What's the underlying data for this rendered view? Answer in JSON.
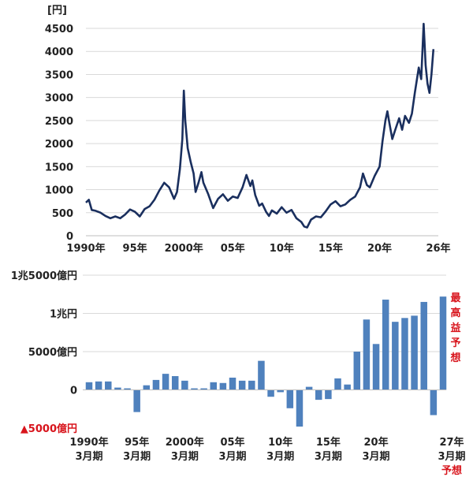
{
  "chart_data": [
    {
      "type": "line",
      "ylabel": "[円]",
      "ylim": [
        0,
        4500
      ],
      "yticks": [
        0,
        500,
        1000,
        1500,
        2000,
        2500,
        3000,
        3500,
        4000,
        4500
      ],
      "x_ticks": [
        {
          "year": 1990,
          "label": "1990年"
        },
        {
          "year": 1995,
          "label": "95年"
        },
        {
          "year": 2000,
          "label": "2000年"
        },
        {
          "year": 2005,
          "label": "05年"
        },
        {
          "year": 2010,
          "label": "10年"
        },
        {
          "year": 2015,
          "label": "15年"
        },
        {
          "year": 2020,
          "label": "20年"
        },
        {
          "year": 2026,
          "label": "26年"
        }
      ],
      "color": "#1a2f5e",
      "series": [
        {
          "values": [
            [
              1990.0,
              720
            ],
            [
              1990.3,
              780
            ],
            [
              1990.6,
              560
            ],
            [
              1991.0,
              540
            ],
            [
              1991.5,
              500
            ],
            [
              1992.0,
              430
            ],
            [
              1992.5,
              380
            ],
            [
              1993.0,
              420
            ],
            [
              1993.5,
              380
            ],
            [
              1994.0,
              460
            ],
            [
              1994.5,
              570
            ],
            [
              1995.0,
              520
            ],
            [
              1995.5,
              420
            ],
            [
              1996.0,
              580
            ],
            [
              1996.5,
              640
            ],
            [
              1997.0,
              780
            ],
            [
              1997.5,
              980
            ],
            [
              1998.0,
              1150
            ],
            [
              1998.5,
              1050
            ],
            [
              1999.0,
              800
            ],
            [
              1999.3,
              950
            ],
            [
              1999.6,
              1450
            ],
            [
              1999.85,
              2100
            ],
            [
              2000.0,
              3150
            ],
            [
              2000.15,
              2500
            ],
            [
              2000.4,
              1900
            ],
            [
              2000.7,
              1600
            ],
            [
              2001.0,
              1350
            ],
            [
              2001.2,
              950
            ],
            [
              2001.5,
              1150
            ],
            [
              2001.8,
              1380
            ],
            [
              2002.0,
              1150
            ],
            [
              2002.5,
              900
            ],
            [
              2003.0,
              600
            ],
            [
              2003.5,
              800
            ],
            [
              2004.0,
              900
            ],
            [
              2004.5,
              760
            ],
            [
              2005.0,
              850
            ],
            [
              2005.5,
              820
            ],
            [
              2006.0,
              1050
            ],
            [
              2006.4,
              1320
            ],
            [
              2006.8,
              1080
            ],
            [
              2007.0,
              1200
            ],
            [
              2007.3,
              880
            ],
            [
              2007.7,
              650
            ],
            [
              2008.0,
              700
            ],
            [
              2008.4,
              520
            ],
            [
              2008.7,
              430
            ],
            [
              2009.0,
              550
            ],
            [
              2009.5,
              480
            ],
            [
              2010.0,
              620
            ],
            [
              2010.5,
              500
            ],
            [
              2011.0,
              560
            ],
            [
              2011.5,
              380
            ],
            [
              2012.0,
              300
            ],
            [
              2012.3,
              200
            ],
            [
              2012.6,
              180
            ],
            [
              2013.0,
              350
            ],
            [
              2013.5,
              420
            ],
            [
              2014.0,
              400
            ],
            [
              2014.5,
              530
            ],
            [
              2015.0,
              680
            ],
            [
              2015.5,
              750
            ],
            [
              2016.0,
              640
            ],
            [
              2016.5,
              680
            ],
            [
              2017.0,
              780
            ],
            [
              2017.5,
              850
            ],
            [
              2018.0,
              1050
            ],
            [
              2018.3,
              1350
            ],
            [
              2018.7,
              1100
            ],
            [
              2019.0,
              1050
            ],
            [
              2019.5,
              1300
            ],
            [
              2020.0,
              1500
            ],
            [
              2020.3,
              2050
            ],
            [
              2020.6,
              2500
            ],
            [
              2020.8,
              2700
            ],
            [
              2021.0,
              2450
            ],
            [
              2021.3,
              2100
            ],
            [
              2021.6,
              2300
            ],
            [
              2022.0,
              2550
            ],
            [
              2022.3,
              2300
            ],
            [
              2022.6,
              2600
            ],
            [
              2023.0,
              2450
            ],
            [
              2023.3,
              2650
            ],
            [
              2023.6,
              3100
            ],
            [
              2024.0,
              3650
            ],
            [
              2024.25,
              3400
            ],
            [
              2024.5,
              4600
            ],
            [
              2024.7,
              3700
            ],
            [
              2024.9,
              3300
            ],
            [
              2025.1,
              3100
            ],
            [
              2025.3,
              3500
            ],
            [
              2025.5,
              4050
            ]
          ]
        }
      ]
    },
    {
      "type": "bar",
      "ylabel": "",
      "ylim": [
        -5000,
        15000
      ],
      "yticks": [
        {
          "value": 15000,
          "label": "1兆5000億円"
        },
        {
          "value": 10000,
          "label": "1兆円"
        },
        {
          "value": 5000,
          "label": "5000億円"
        },
        {
          "value": 0,
          "label": "0"
        },
        {
          "value": -5000,
          "label": "▲5000億円"
        }
      ],
      "x_ticks": [
        {
          "year": 1990,
          "line1": "1990年",
          "line2": "3月期"
        },
        {
          "year": 1995,
          "line1": "95年",
          "line2": "3月期"
        },
        {
          "year": 2000,
          "line1": "2000年",
          "line2": "3月期"
        },
        {
          "year": 2005,
          "line1": "05年",
          "line2": "3月期"
        },
        {
          "year": 2010,
          "line1": "10年",
          "line2": "3月期"
        },
        {
          "year": 2015,
          "line1": "15年",
          "line2": "3月期"
        },
        {
          "year": 2020,
          "line1": "20年",
          "line2": "3月期"
        },
        {
          "year": 2027,
          "line1": "27年",
          "line2": "3月期",
          "line3": "予想"
        }
      ],
      "annotation": "最高益予想",
      "color": "#4f81bd",
      "series": [
        {
          "values": [
            [
              1990,
              1000
            ],
            [
              1991,
              1100
            ],
            [
              1992,
              1100
            ],
            [
              1993,
              300
            ],
            [
              1994,
              200
            ],
            [
              1995,
              -2900
            ],
            [
              1996,
              600
            ],
            [
              1997,
              1300
            ],
            [
              1998,
              2100
            ],
            [
              1999,
              1800
            ],
            [
              2000,
              1200
            ],
            [
              2001,
              200
            ],
            [
              2002,
              200
            ],
            [
              2003,
              1000
            ],
            [
              2004,
              900
            ],
            [
              2005,
              1600
            ],
            [
              2006,
              1200
            ],
            [
              2007,
              1200
            ],
            [
              2008,
              3800
            ],
            [
              2009,
              -900
            ],
            [
              2010,
              -300
            ],
            [
              2011,
              -2400
            ],
            [
              2012,
              -4800
            ],
            [
              2013,
              400
            ],
            [
              2014,
              -1300
            ],
            [
              2015,
              -1200
            ],
            [
              2016,
              1500
            ],
            [
              2017,
              700
            ],
            [
              2018,
              5000
            ],
            [
              2019,
              9200
            ],
            [
              2020,
              6000
            ],
            [
              2021,
              11800
            ],
            [
              2022,
              8900
            ],
            [
              2023,
              9400
            ],
            [
              2024,
              9700
            ],
            [
              2025,
              11500
            ],
            [
              2026,
              -3300
            ],
            [
              2027,
              12200
            ]
          ]
        }
      ]
    }
  ]
}
